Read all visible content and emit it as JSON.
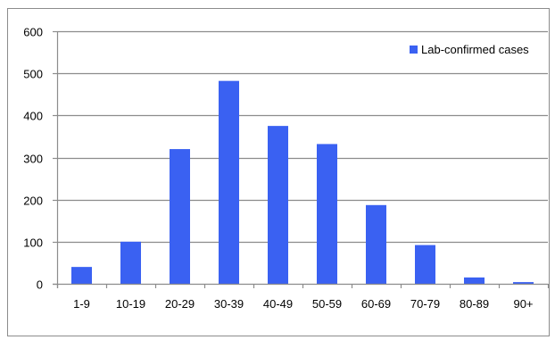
{
  "chart_data": {
    "type": "bar",
    "categories": [
      "1-9",
      "10-19",
      "20-29",
      "30-39",
      "40-49",
      "50-59",
      "60-69",
      "70-79",
      "80-89",
      "90+"
    ],
    "series": [
      {
        "name": "Lab-confirmed cases",
        "color": "#3a61f2",
        "values": [
          40,
          100,
          320,
          482,
          375,
          332,
          187,
          92,
          15,
          4
        ]
      }
    ],
    "ylim": [
      0,
      600
    ],
    "yticks": [
      "0",
      "100",
      "200",
      "300",
      "400",
      "500",
      "600"
    ],
    "grid": true,
    "legend_position": "top-right",
    "title": "",
    "xlabel": "",
    "ylabel": ""
  }
}
